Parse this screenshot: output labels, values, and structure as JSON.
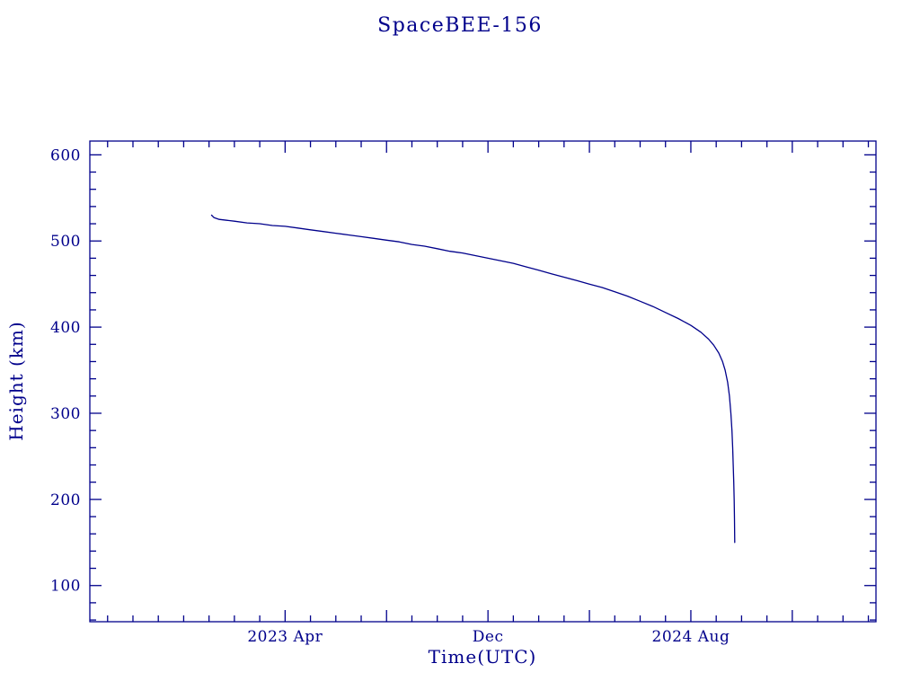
{
  "page": {
    "background_color": "#ffffff"
  },
  "chart_data": {
    "type": "line",
    "title": "SpaceBEE-156",
    "xlabel": "Time(UTC)",
    "ylabel": "Height (km)",
    "legend": "none",
    "grid": false,
    "colors": {
      "axis": "#00008B",
      "text": "#00008B",
      "line": "#00008B",
      "background": "#ffffff"
    },
    "x_axis": {
      "label": "Time(UTC)",
      "unit": "months since 2023-01-01",
      "range": [
        -4.7,
        26.3
      ],
      "minor_tick_every": 1,
      "major_ticks": [
        3,
        7,
        11,
        15,
        19,
        23
      ],
      "tick_labels": [
        {
          "pos": 3,
          "text": "2023 Apr"
        },
        {
          "pos": 11,
          "text": "Dec"
        },
        {
          "pos": 19,
          "text": "2024 Aug"
        }
      ]
    },
    "y_axis": {
      "label": "Height (km)",
      "unit": "km",
      "range": [
        58,
        616
      ],
      "minor_tick_every": 20,
      "major_ticks": [
        100,
        200,
        300,
        400,
        500,
        600
      ]
    },
    "series": [
      {
        "name": "orbital-height",
        "color": "#00008B",
        "points": [
          [
            0.1,
            530
          ],
          [
            0.2,
            527
          ],
          [
            0.4,
            525
          ],
          [
            0.7,
            524
          ],
          [
            1.0,
            523
          ],
          [
            1.5,
            521
          ],
          [
            2.0,
            520
          ],
          [
            2.5,
            518
          ],
          [
            3.0,
            517
          ],
          [
            3.5,
            515
          ],
          [
            4.0,
            513
          ],
          [
            4.5,
            511
          ],
          [
            5.0,
            509
          ],
          [
            5.5,
            507
          ],
          [
            6.0,
            505
          ],
          [
            6.5,
            503
          ],
          [
            7.0,
            501
          ],
          [
            7.5,
            499
          ],
          [
            8.0,
            496
          ],
          [
            8.5,
            494
          ],
          [
            9.0,
            491
          ],
          [
            9.5,
            488
          ],
          [
            10.0,
            486
          ],
          [
            10.5,
            483
          ],
          [
            11.0,
            480
          ],
          [
            11.5,
            477
          ],
          [
            12.0,
            474
          ],
          [
            12.5,
            470
          ],
          [
            13.0,
            466
          ],
          [
            13.5,
            462
          ],
          [
            14.0,
            458
          ],
          [
            14.5,
            454
          ],
          [
            15.0,
            450
          ],
          [
            15.5,
            446
          ],
          [
            16.0,
            441
          ],
          [
            16.5,
            436
          ],
          [
            17.0,
            430
          ],
          [
            17.5,
            424
          ],
          [
            18.0,
            417
          ],
          [
            18.5,
            410
          ],
          [
            19.0,
            402
          ],
          [
            19.4,
            394
          ],
          [
            19.7,
            386
          ],
          [
            19.9,
            379
          ],
          [
            20.1,
            370
          ],
          [
            20.25,
            360
          ],
          [
            20.35,
            350
          ],
          [
            20.45,
            336
          ],
          [
            20.52,
            320
          ],
          [
            20.58,
            300
          ],
          [
            20.62,
            280
          ],
          [
            20.65,
            260
          ],
          [
            20.67,
            240
          ],
          [
            20.69,
            220
          ],
          [
            20.71,
            198
          ],
          [
            20.72,
            178
          ],
          [
            20.73,
            150
          ]
        ]
      }
    ]
  }
}
